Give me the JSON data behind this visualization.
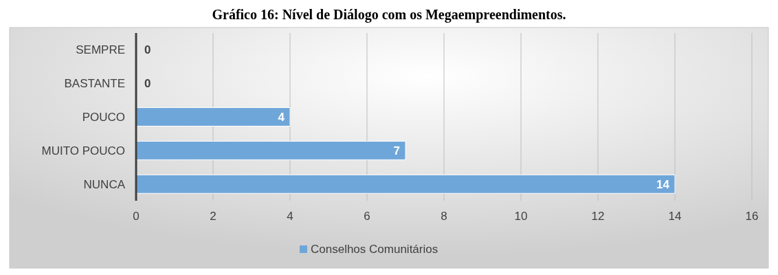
{
  "chart_data": {
    "type": "bar",
    "orientation": "horizontal",
    "title": "Gráfico 16: Nível de Diálogo com os Megaempreendimentos.",
    "categories": [
      "SEMPRE",
      "BASTANTE",
      "POUCO",
      "MUITO POUCO",
      "NUNCA"
    ],
    "series": [
      {
        "name": "Conselhos Comunitários",
        "color": "#6fa6d9",
        "values": [
          0,
          0,
          4,
          7,
          14
        ]
      }
    ],
    "xlim": [
      0,
      16
    ],
    "xticks": [
      0,
      2,
      4,
      6,
      8,
      10,
      12,
      14,
      16
    ],
    "grid": "x",
    "data_labels": true,
    "legend": "bottom"
  }
}
